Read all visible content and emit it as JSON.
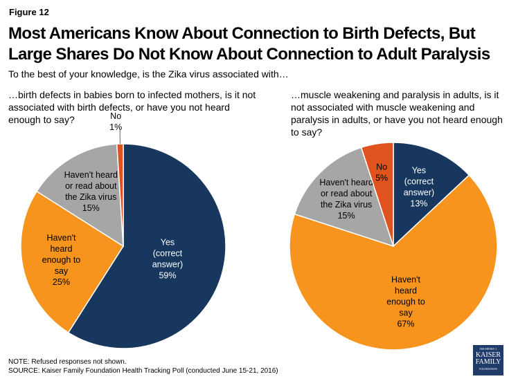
{
  "figure_label": "Figure 12",
  "title_lines": [
    "Most Americans Know About Connection to Birth Defects, But",
    "Large Shares Do Not Know About Connection to Adult Paralysis"
  ],
  "subtitle": "To the best of your knowledge, is the Zika virus associated with…",
  "note": "NOTE: Refused responses not shown.",
  "source": "SOURCE: Kaiser Family Foundation Health Tracking Poll (conducted June 15-21, 2016)",
  "logo_text": "THE HENRY J. KAISER FAMILY FOUNDATION",
  "colors": {
    "yes": "#17375E",
    "not_enough": "#F7941D",
    "not_heard": "#A6A6A6",
    "no": "#E0531F"
  },
  "chart_data": [
    {
      "type": "pie",
      "title": "…birth defects in babies born to infected mothers, is it not associated with birth defects, or have you not heard enough to say?",
      "start": "12 o'clock",
      "direction": "clockwise",
      "slices": [
        {
          "label": "Yes (correct answer)",
          "lines": [
            "Yes",
            "(correct",
            "answer)",
            "59%"
          ],
          "value": 59,
          "color_key": "yes"
        },
        {
          "label": "Haven't heard enough to say",
          "lines": [
            "Haven't",
            "heard",
            "enough to",
            "say",
            "25%"
          ],
          "value": 25,
          "color_key": "not_enough"
        },
        {
          "label": "Haven't heard or read about the Zika virus",
          "lines": [
            "Haven't heard",
            "or read about",
            "the Zika virus",
            "15%"
          ],
          "value": 15,
          "color_key": "not_heard"
        },
        {
          "label": "No",
          "lines": [
            "No",
            "1%"
          ],
          "value": 1,
          "color_key": "no"
        }
      ]
    },
    {
      "type": "pie",
      "title": "…muscle weakening and paralysis in adults, is it not associated with muscle weakening and paralysis in adults, or have you not heard enough to say?",
      "start": "12 o'clock",
      "direction": "clockwise",
      "slices": [
        {
          "label": "Yes (correct answer)",
          "lines": [
            "Yes",
            "(correct",
            "answer)",
            "13%"
          ],
          "value": 13,
          "color_key": "yes"
        },
        {
          "label": "Haven't heard enough to say",
          "lines": [
            "Haven't",
            "heard",
            "enough to",
            "say",
            "67%"
          ],
          "value": 67,
          "color_key": "not_enough"
        },
        {
          "label": "Haven't heard or read about the Zika virus",
          "lines": [
            "Haven't heard",
            "or read about",
            "the Zika virus",
            "15%"
          ],
          "value": 15,
          "color_key": "not_heard"
        },
        {
          "label": "No",
          "lines": [
            "No",
            "5%"
          ],
          "value": 5,
          "color_key": "no"
        }
      ]
    }
  ]
}
